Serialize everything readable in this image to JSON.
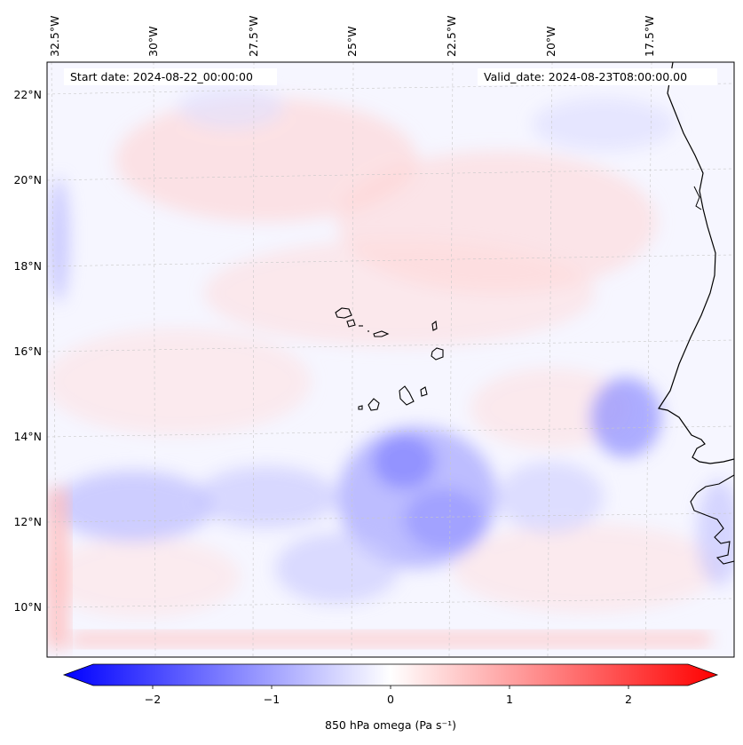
{
  "map": {
    "start_date_label": "Start date: 2024-08-22_00:00:00",
    "valid_date_label": "Valid_date: 2024-08-23T08:00:00.00",
    "lon_labels": [
      "32.5°W",
      "30°W",
      "27.5°W",
      "25°W",
      "22.5°W",
      "20°W",
      "17.5°W"
    ],
    "lat_labels": [
      "22°N",
      "20°N",
      "18°N",
      "16°N",
      "14°N",
      "12°N",
      "10°N"
    ],
    "field_colors": {
      "positive": "#ff0000",
      "negative": "#0000ff",
      "zero": "#ffffff"
    }
  },
  "colorbar": {
    "label": "850 hPa omega (Pa s⁻¹)",
    "ticks": [
      "−2",
      "−1",
      "0",
      "1",
      "2"
    ],
    "range": [
      -2.7,
      2.7
    ],
    "cmap": "bwr",
    "extend": "both"
  }
}
